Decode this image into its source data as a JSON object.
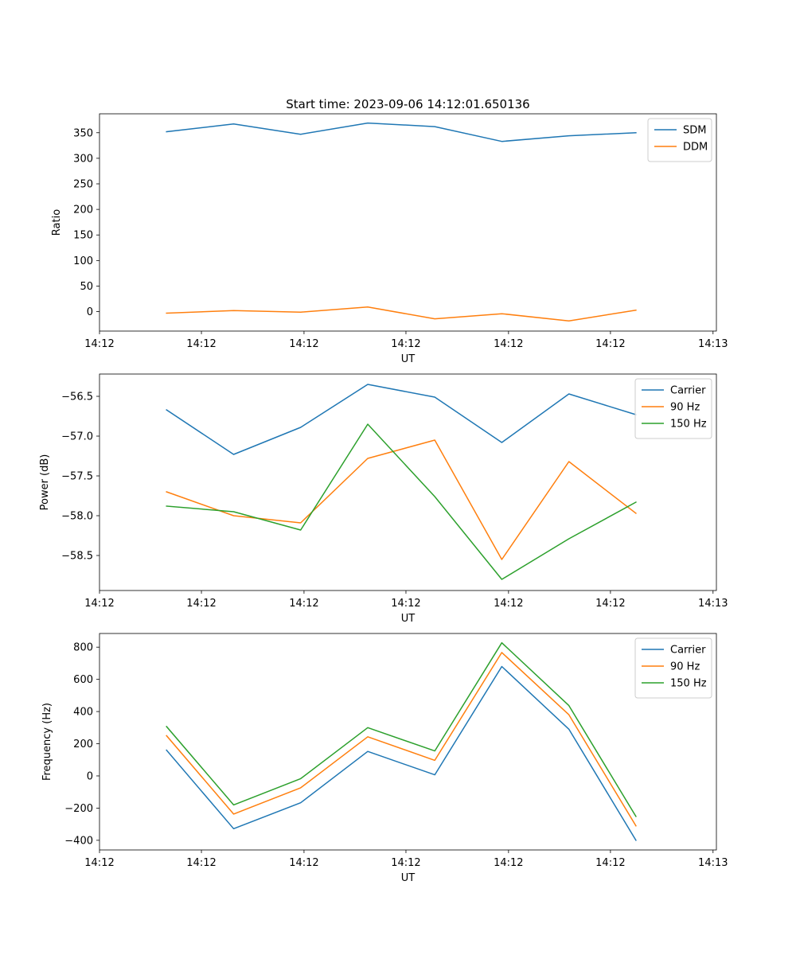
{
  "figure": {
    "title": "Start time: 2023-09-06 14:12:01.650136"
  },
  "colors": {
    "blue": "#1f77b4",
    "orange": "#ff7f0e",
    "green": "#2ca02c"
  },
  "chart_data": [
    {
      "type": "line",
      "title": "Start time: 2023-09-06 14:12:01.650136",
      "xlabel": "UT",
      "ylabel": "Ratio",
      "xlim": [
        0,
        9.2
      ],
      "ylim": [
        -38,
        387
      ],
      "x": [
        1,
        2,
        3,
        4,
        5,
        6,
        7,
        8
      ],
      "xticks": [
        0,
        1.52,
        3.05,
        4.57,
        6.1,
        7.62,
        9.15
      ],
      "xtick_labels": [
        "14:12",
        "14:12",
        "14:12",
        "14:12",
        "14:12",
        "14:12",
        "14:13"
      ],
      "yticks": [
        0,
        50,
        100,
        150,
        200,
        250,
        300,
        350
      ],
      "ytick_labels": [
        "0",
        "50",
        "100",
        "150",
        "200",
        "250",
        "300",
        "350"
      ],
      "legend": "top-right",
      "series": [
        {
          "name": "SDM",
          "color": "#1f77b4",
          "values": [
            352,
            367,
            347,
            369,
            362,
            333,
            344,
            350
          ]
        },
        {
          "name": "DDM",
          "color": "#ff7f0e",
          "values": [
            -3,
            2,
            -1,
            9,
            -14,
            -4,
            -18,
            3
          ]
        }
      ]
    },
    {
      "type": "line",
      "title": "",
      "xlabel": "UT",
      "ylabel": "Power (dB)",
      "xlim": [
        0,
        9.2
      ],
      "ylim": [
        -58.94,
        -56.22
      ],
      "x": [
        1,
        2,
        3,
        4,
        5,
        6,
        7,
        8
      ],
      "xticks": [
        0,
        1.52,
        3.05,
        4.57,
        6.1,
        7.62,
        9.15
      ],
      "xtick_labels": [
        "14:12",
        "14:12",
        "14:12",
        "14:12",
        "14:12",
        "14:12",
        "14:13"
      ],
      "yticks": [
        -58.5,
        -58.0,
        -57.5,
        -57.0,
        -56.5
      ],
      "ytick_labels": [
        "−58.5",
        "−58.0",
        "−57.5",
        "−57.0",
        "−56.5"
      ],
      "legend": "top-right",
      "series": [
        {
          "name": "Carrier",
          "color": "#1f77b4",
          "values": [
            -56.67,
            -57.23,
            -56.89,
            -56.35,
            -56.51,
            -57.08,
            -56.47,
            -56.73
          ]
        },
        {
          "name": "90 Hz",
          "color": "#ff7f0e",
          "values": [
            -57.7,
            -58.0,
            -58.09,
            -57.28,
            -57.05,
            -58.55,
            -57.32,
            -57.97
          ]
        },
        {
          "name": "150 Hz",
          "color": "#2ca02c",
          "values": [
            -57.88,
            -57.95,
            -58.18,
            -56.85,
            -57.76,
            -58.8,
            -58.29,
            -57.83
          ]
        }
      ]
    },
    {
      "type": "line",
      "title": "",
      "xlabel": "UT",
      "ylabel": "Frequency (Hz)",
      "xlim": [
        0,
        9.2
      ],
      "ylim": [
        -460,
        885
      ],
      "x": [
        1,
        2,
        3,
        4,
        5,
        6,
        7,
        8
      ],
      "xticks": [
        0,
        1.52,
        3.05,
        4.57,
        6.1,
        7.62,
        9.15
      ],
      "xtick_labels": [
        "14:12",
        "14:12",
        "14:12",
        "14:12",
        "14:12",
        "14:12",
        "14:13"
      ],
      "yticks": [
        -400,
        -200,
        0,
        200,
        400,
        600,
        800
      ],
      "ytick_labels": [
        "−400",
        "−200",
        "0",
        "200",
        "400",
        "600",
        "800"
      ],
      "legend": "top-right",
      "series": [
        {
          "name": "Carrier",
          "color": "#1f77b4",
          "values": [
            160,
            -328,
            -167,
            152,
            7,
            680,
            290,
            -400
          ]
        },
        {
          "name": "90 Hz",
          "color": "#ff7f0e",
          "values": [
            250,
            -237,
            -74,
            243,
            97,
            767,
            380,
            -310
          ]
        },
        {
          "name": "150 Hz",
          "color": "#2ca02c",
          "values": [
            307,
            -180,
            -17,
            300,
            155,
            827,
            437,
            -252
          ]
        }
      ]
    }
  ]
}
